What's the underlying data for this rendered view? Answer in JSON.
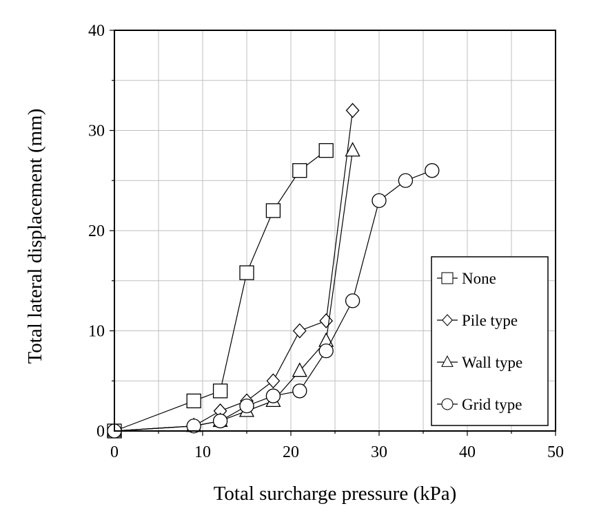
{
  "chart_data": {
    "type": "line",
    "xlabel": "Total surcharge pressure (kPa)",
    "ylabel": "Total lateral displacement (mm)",
    "xlim": [
      0,
      50
    ],
    "ylim": [
      0,
      40
    ],
    "xticks": [
      0,
      10,
      20,
      30,
      40,
      50
    ],
    "yticks": [
      0,
      10,
      20,
      30,
      40
    ],
    "x_tick_labels": [
      "0",
      "10",
      "20",
      "30",
      "40",
      "50"
    ],
    "y_tick_labels": [
      "0",
      "10",
      "20",
      "30",
      "40"
    ],
    "grid": true,
    "legend_position": "bottom-right",
    "series": [
      {
        "name": "None",
        "marker": "square",
        "x": [
          0,
          9,
          12,
          15,
          18,
          21,
          24
        ],
        "y": [
          0,
          3,
          4,
          15.8,
          22,
          26,
          28
        ]
      },
      {
        "name": "Pile type",
        "marker": "diamond",
        "x": [
          0,
          9,
          12,
          15,
          18,
          21,
          24,
          27
        ],
        "y": [
          0,
          0.5,
          2,
          3,
          5,
          10,
          11,
          32
        ]
      },
      {
        "name": "Wall type",
        "marker": "triangle",
        "x": [
          0,
          9,
          12,
          15,
          18,
          21,
          24,
          27
        ],
        "y": [
          0,
          0.5,
          1,
          2,
          3,
          6,
          9,
          28
        ]
      },
      {
        "name": "Grid type",
        "marker": "circle",
        "x": [
          0,
          9,
          12,
          15,
          18,
          21,
          24,
          27,
          30,
          33,
          36
        ],
        "y": [
          0,
          0.5,
          1,
          2.5,
          3.5,
          4,
          8,
          13,
          23,
          25,
          26
        ]
      }
    ]
  },
  "colors": {
    "line": "#000000",
    "grid": "#bfbfbf",
    "marker_fill": "#ffffff"
  }
}
